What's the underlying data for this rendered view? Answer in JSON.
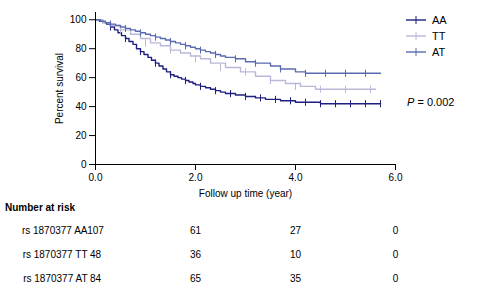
{
  "chart_data": {
    "type": "step",
    "xlabel": "Follow up time (year)",
    "ylabel": "Percent survival",
    "xlim": [
      0,
      6
    ],
    "ylim": [
      0,
      105
    ],
    "xticks": [
      0,
      2,
      4,
      6
    ],
    "yticks": [
      0,
      20,
      40,
      60,
      80,
      100
    ],
    "grid": false,
    "legend": "right",
    "annotation": "P = 0.002",
    "series": [
      {
        "name": "AA",
        "color": "#1e1e7e",
        "marker": "|",
        "x": [
          0.0,
          0.08,
          0.15,
          0.22,
          0.3,
          0.38,
          0.45,
          0.52,
          0.6,
          0.67,
          0.75,
          0.82,
          0.9,
          0.97,
          1.05,
          1.12,
          1.2,
          1.27,
          1.35,
          1.42,
          1.5,
          1.57,
          1.65,
          1.72,
          1.8,
          1.87,
          1.95,
          2.0,
          2.1,
          2.2,
          2.3,
          2.4,
          2.5,
          2.6,
          2.7,
          2.8,
          2.9,
          3.0,
          3.1,
          3.2,
          3.3,
          3.4,
          3.5,
          3.6,
          3.7,
          3.8,
          4.0,
          4.1,
          4.2,
          4.3,
          4.5,
          4.6,
          4.7,
          4.8,
          4.9,
          5.0,
          5.1,
          5.3,
          5.5,
          5.7
        ],
        "values": [
          100,
          99,
          98,
          97,
          95,
          93,
          91,
          89,
          87,
          85,
          83,
          80,
          78,
          76,
          74,
          72,
          70,
          68,
          66,
          64,
          62,
          61,
          60,
          59,
          58,
          57,
          56,
          55,
          54,
          53,
          52,
          51,
          50,
          49,
          49,
          48,
          48,
          47,
          47,
          46,
          46,
          45,
          45,
          45,
          44,
          44,
          43,
          43,
          43,
          43,
          42,
          42,
          42,
          42,
          42,
          42,
          42,
          42,
          42,
          42
        ],
        "censor_x": [
          0.3,
          0.6,
          0.9,
          1.2,
          1.5,
          1.8,
          2.1,
          2.4,
          2.7,
          3.0,
          3.3,
          3.6,
          3.9,
          4.2,
          4.5,
          4.8,
          5.1,
          5.4,
          5.7
        ],
        "censor_values": [
          95,
          87,
          78,
          70,
          62,
          58,
          54,
          51,
          49,
          47,
          46,
          45,
          44,
          43,
          42,
          42,
          42,
          42,
          42
        ]
      },
      {
        "name": "TT",
        "color": "#b8b8d8",
        "marker": "|",
        "x": [
          0.0,
          0.15,
          0.3,
          0.5,
          0.7,
          0.9,
          1.1,
          1.3,
          1.5,
          1.7,
          1.9,
          2.1,
          2.3,
          2.6,
          2.9,
          3.2,
          3.5,
          3.8,
          4.1,
          4.4,
          4.7,
          5.0,
          5.3,
          5.6
        ],
        "values": [
          100,
          98,
          96,
          93,
          90,
          87,
          84,
          82,
          79,
          77,
          75,
          73,
          70,
          67,
          64,
          61,
          58,
          56,
          54,
          52,
          52,
          52,
          52,
          52
        ],
        "censor_x": [
          0.5,
          1.0,
          1.5,
          2.0,
          2.5,
          3.0,
          3.5,
          4.0,
          4.5,
          5.0,
          5.5
        ],
        "censor_values": [
          93,
          84,
          79,
          73,
          67,
          64,
          58,
          54,
          52,
          52,
          52
        ]
      },
      {
        "name": "AT",
        "color": "#5a6ab0",
        "marker": "|",
        "x": [
          0.0,
          0.1,
          0.2,
          0.3,
          0.4,
          0.5,
          0.6,
          0.7,
          0.8,
          0.9,
          1.0,
          1.1,
          1.2,
          1.3,
          1.4,
          1.5,
          1.6,
          1.7,
          1.8,
          1.9,
          2.0,
          2.1,
          2.2,
          2.3,
          2.4,
          2.5,
          2.6,
          2.8,
          3.0,
          3.2,
          3.5,
          3.7,
          4.0,
          4.2,
          4.4,
          4.6,
          4.8,
          5.0,
          5.2,
          5.4,
          5.7
        ],
        "values": [
          100,
          99,
          98,
          97,
          96,
          95,
          94,
          93,
          92,
          91,
          90,
          89,
          88,
          87,
          86,
          85,
          84,
          83,
          82,
          81,
          80,
          79,
          78,
          77,
          76,
          75,
          74,
          73,
          71,
          70,
          68,
          66,
          64,
          63,
          63,
          63,
          63,
          63,
          63,
          63,
          63
        ],
        "censor_x": [
          0.3,
          0.6,
          0.9,
          1.2,
          1.5,
          1.8,
          2.1,
          2.4,
          2.8,
          3.2,
          3.7,
          4.2,
          4.6,
          5.0,
          5.4
        ],
        "censor_values": [
          97,
          94,
          91,
          88,
          85,
          82,
          79,
          76,
          73,
          70,
          66,
          63,
          63,
          63,
          63
        ]
      }
    ],
    "risk_table": {
      "label": "Number at risk",
      "groups": [
        "rs 1870377 AA",
        "rs 1870377 TT",
        "rs 1870377 AT"
      ],
      "times": [
        0,
        2,
        4,
        6
      ],
      "numbers": [
        [
          107,
          61,
          27,
          0
        ],
        [
          48,
          36,
          10,
          0
        ],
        [
          84,
          65,
          35,
          0
        ]
      ]
    }
  }
}
